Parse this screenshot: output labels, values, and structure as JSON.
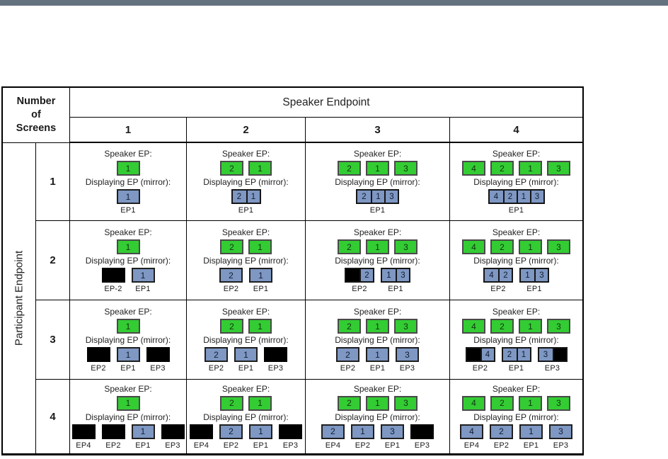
{
  "page": {
    "topbar_color": "#64717f"
  },
  "table": {
    "corner_label": "Number of Screens",
    "speaker_header": "Speaker Endpoint",
    "speaker_cols": [
      "1",
      "2",
      "3",
      "4"
    ],
    "participant_label": "Participant Endpoint",
    "row_labels": [
      "1",
      "2",
      "3",
      "4"
    ],
    "speaker_ep_label": "Speaker EP:",
    "displaying_ep_label": "Displaying EP (mirror):",
    "colors": {
      "speaker_box": "#33cc33",
      "display_box": "#7e97c3",
      "inactive_box": "#000000"
    },
    "rows": [
      {
        "participant_screens": "1",
        "cells": [
          {
            "speaker": [
              "1"
            ],
            "units": [
              {
                "cells": [
                  "1"
                ],
                "label": "EP1"
              }
            ]
          },
          {
            "speaker": [
              "2",
              "1"
            ],
            "units": [
              {
                "cells": [
                  "2",
                  "1"
                ],
                "label": "EP1"
              }
            ]
          },
          {
            "speaker": [
              "2",
              "1",
              "3"
            ],
            "units": [
              {
                "cells": [
                  "2",
                  "1",
                  "3"
                ],
                "label": "EP1"
              }
            ]
          },
          {
            "speaker": [
              "4",
              "2",
              "1",
              "3"
            ],
            "units": [
              {
                "cells": [
                  "4",
                  "2",
                  "1",
                  "3"
                ],
                "label": "EP1"
              }
            ]
          }
        ]
      },
      {
        "participant_screens": "2",
        "cells": [
          {
            "speaker": [
              "1"
            ],
            "units": [
              {
                "cells": [
                  ""
                ],
                "label": "EP-2"
              },
              {
                "cells": [
                  "1"
                ],
                "label": "EP1"
              }
            ]
          },
          {
            "speaker": [
              "2",
              "1"
            ],
            "units": [
              {
                "cells": [
                  "2"
                ],
                "label": "EP2"
              },
              {
                "cells": [
                  "1"
                ],
                "label": "EP1"
              }
            ]
          },
          {
            "speaker": [
              "2",
              "1",
              "3"
            ],
            "units": [
              {
                "cells": [
                  "",
                  "2"
                ],
                "label": "EP2"
              },
              {
                "cells": [
                  "1",
                  "3"
                ],
                "label": "EP1"
              }
            ]
          },
          {
            "speaker": [
              "4",
              "2",
              "1",
              "3"
            ],
            "units": [
              {
                "cells": [
                  "4",
                  "2"
                ],
                "label": "EP2"
              },
              {
                "cells": [
                  "1",
                  "3"
                ],
                "label": "EP1"
              }
            ]
          }
        ]
      },
      {
        "participant_screens": "3",
        "cells": [
          {
            "speaker": [
              "1"
            ],
            "units": [
              {
                "cells": [
                  ""
                ],
                "label": "EP2"
              },
              {
                "cells": [
                  "1"
                ],
                "label": "EP1"
              },
              {
                "cells": [
                  ""
                ],
                "label": "EP3"
              }
            ]
          },
          {
            "speaker": [
              "2",
              "1"
            ],
            "units": [
              {
                "cells": [
                  "2"
                ],
                "label": "EP2"
              },
              {
                "cells": [
                  "1"
                ],
                "label": "EP1"
              },
              {
                "cells": [
                  ""
                ],
                "label": "EP3"
              }
            ]
          },
          {
            "speaker": [
              "2",
              "1",
              "3"
            ],
            "units": [
              {
                "cells": [
                  "2"
                ],
                "label": "EP2"
              },
              {
                "cells": [
                  "1"
                ],
                "label": "EP1"
              },
              {
                "cells": [
                  "3"
                ],
                "label": "EP3"
              }
            ]
          },
          {
            "speaker": [
              "4",
              "2",
              "1",
              "3"
            ],
            "units": [
              {
                "cells": [
                  "",
                  "4"
                ],
                "label": "EP2"
              },
              {
                "cells": [
                  "2",
                  "1"
                ],
                "label": "EP1"
              },
              {
                "cells": [
                  "3",
                  ""
                ],
                "label": "EP3"
              }
            ]
          }
        ]
      },
      {
        "participant_screens": "4",
        "cells": [
          {
            "speaker": [
              "1"
            ],
            "units": [
              {
                "cells": [
                  ""
                ],
                "label": "EP4"
              },
              {
                "cells": [
                  ""
                ],
                "label": "EP2"
              },
              {
                "cells": [
                  "1"
                ],
                "label": "EP1"
              },
              {
                "cells": [
                  ""
                ],
                "label": "EP3"
              }
            ]
          },
          {
            "speaker": [
              "2",
              "1"
            ],
            "units": [
              {
                "cells": [
                  ""
                ],
                "label": "EP4"
              },
              {
                "cells": [
                  "2"
                ],
                "label": "EP2"
              },
              {
                "cells": [
                  "1"
                ],
                "label": "EP1"
              },
              {
                "cells": [
                  ""
                ],
                "label": "EP3"
              }
            ]
          },
          {
            "speaker": [
              "2",
              "1",
              "3"
            ],
            "units": [
              {
                "cells": [
                  "2"
                ],
                "label": "EP4"
              },
              {
                "cells": [
                  "1"
                ],
                "label": "EP2"
              },
              {
                "cells": [
                  "3"
                ],
                "label": "EP1"
              },
              {
                "cells": [
                  ""
                ],
                "label": "EP3"
              }
            ]
          },
          {
            "speaker": [
              "4",
              "2",
              "1",
              "3"
            ],
            "units": [
              {
                "cells": [
                  "4"
                ],
                "label": "EP4"
              },
              {
                "cells": [
                  "2"
                ],
                "label": "EP2"
              },
              {
                "cells": [
                  "1"
                ],
                "label": "EP1"
              },
              {
                "cells": [
                  "3"
                ],
                "label": "EP3"
              }
            ]
          }
        ]
      }
    ]
  }
}
